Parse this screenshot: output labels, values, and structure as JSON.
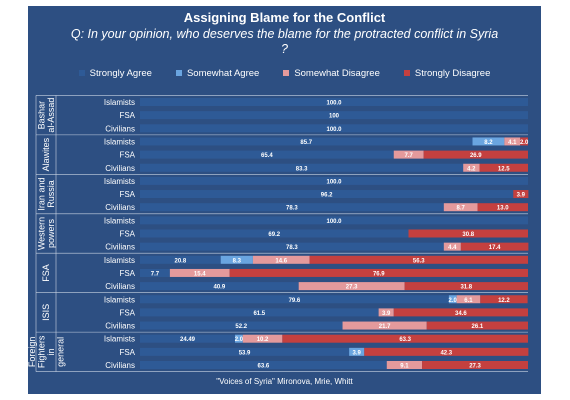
{
  "title": "Assigning Blame for the Conflict",
  "question": "Q: In your opinion, who deserves the blame for the protracted conflict in Syria ?",
  "source": "\"Voices of Syria\"  Mironova, Mrie, Whitt",
  "chart_data": {
    "type": "bar",
    "stacked": true,
    "orientation": "horizontal",
    "xlim": [
      0,
      100
    ],
    "legend_position": "top",
    "series": [
      {
        "name": "Strongly Agree",
        "color": "#2e5a96"
      },
      {
        "name": "Somewhat Agree",
        "color": "#6aa5e0"
      },
      {
        "name": "Somewhat Disagree",
        "color": "#e49a9c"
      },
      {
        "name": "Strongly Disagree",
        "color": "#c4403f"
      }
    ],
    "groups": [
      {
        "label": "Bashar al-Assad",
        "rows": [
          {
            "label": "Islamists",
            "values": [
              100,
              0,
              0,
              0
            ],
            "labels": [
              "100.0",
              "",
              "",
              ""
            ]
          },
          {
            "label": "FSA",
            "values": [
              100,
              0,
              0,
              0
            ],
            "labels": [
              "100",
              "",
              "",
              ""
            ]
          },
          {
            "label": "Civilians",
            "values": [
              100,
              0,
              0,
              0
            ],
            "labels": [
              "100.0",
              "",
              "",
              ""
            ]
          }
        ]
      },
      {
        "label": "Alawites",
        "rows": [
          {
            "label": "Islamists",
            "values": [
              85.7,
              8.2,
              4.1,
              2.0
            ],
            "labels": [
              "85.7",
              "8.2",
              "4.1",
              "2.0"
            ]
          },
          {
            "label": "FSA",
            "values": [
              65.4,
              0,
              7.7,
              26.9
            ],
            "labels": [
              "65.4",
              "",
              "7.7",
              "26.9"
            ]
          },
          {
            "label": "Civilians",
            "values": [
              83.3,
              0,
              4.2,
              12.5
            ],
            "labels": [
              "83.3",
              "",
              "4.2",
              "12.5"
            ]
          }
        ]
      },
      {
        "label": "Iran and Russia",
        "rows": [
          {
            "label": "Islamists",
            "values": [
              100,
              0,
              0,
              0
            ],
            "labels": [
              "100.0",
              "",
              "",
              ""
            ]
          },
          {
            "label": "FSA",
            "values": [
              96.2,
              0,
              0,
              3.9
            ],
            "labels": [
              "96.2",
              "",
              "",
              "3.9"
            ]
          },
          {
            "label": "Civilians",
            "values": [
              78.3,
              0,
              8.7,
              13.0
            ],
            "labels": [
              "78.3",
              "",
              "8.7",
              "13.0"
            ]
          }
        ]
      },
      {
        "label": "Western powers",
        "rows": [
          {
            "label": "Islamists",
            "values": [
              100,
              0,
              0,
              0
            ],
            "labels": [
              "100.0",
              "",
              "",
              ""
            ]
          },
          {
            "label": "FSA",
            "values": [
              69.2,
              0,
              0,
              30.8
            ],
            "labels": [
              "69.2",
              "",
              "",
              "30.8"
            ]
          },
          {
            "label": "Civilians",
            "values": [
              78.3,
              0,
              4.4,
              17.4
            ],
            "labels": [
              "78.3",
              "",
              "4.4",
              "17.4"
            ]
          }
        ]
      },
      {
        "label": "FSA",
        "rows": [
          {
            "label": "Islamists",
            "values": [
              20.8,
              8.3,
              14.6,
              56.3
            ],
            "labels": [
              "20.8",
              "8.3",
              "14.6",
              "56.3"
            ]
          },
          {
            "label": "FSA",
            "values": [
              7.7,
              0,
              15.4,
              76.9
            ],
            "labels": [
              "7.7",
              "",
              "15.4",
              "76.9"
            ]
          },
          {
            "label": "Civilians",
            "values": [
              40.9,
              0,
              27.3,
              31.8
            ],
            "labels": [
              "40.9",
              "",
              "27.3",
              "31.8"
            ]
          }
        ]
      },
      {
        "label": "ISIS",
        "rows": [
          {
            "label": "Islamists",
            "values": [
              79.6,
              2.0,
              6.1,
              12.2
            ],
            "labels": [
              "79.6",
              "2.0",
              "6.1",
              "12.2"
            ]
          },
          {
            "label": "FSA",
            "values": [
              61.5,
              0,
              3.9,
              34.6
            ],
            "labels": [
              "61.5",
              "",
              "3.9",
              "34.6"
            ]
          },
          {
            "label": "Civilians",
            "values": [
              52.2,
              0,
              21.7,
              26.1
            ],
            "labels": [
              "52.2",
              "",
              "21.7",
              "26.1"
            ]
          }
        ]
      },
      {
        "label": "Foreign Fighters in general",
        "rows": [
          {
            "label": "Islamists",
            "values": [
              24.49,
              2.0,
              10.2,
              63.3
            ],
            "labels": [
              "24.49",
              "2.0",
              "10.2",
              "63.3"
            ]
          },
          {
            "label": "FSA",
            "values": [
              53.9,
              3.9,
              0,
              42.3
            ],
            "labels": [
              "53.9",
              "3.9",
              "",
              "42.3"
            ]
          },
          {
            "label": "Civilians",
            "values": [
              63.6,
              0,
              9.1,
              27.3
            ],
            "labels": [
              "63.6",
              "",
              "9.1",
              "27.3"
            ]
          }
        ]
      }
    ]
  }
}
